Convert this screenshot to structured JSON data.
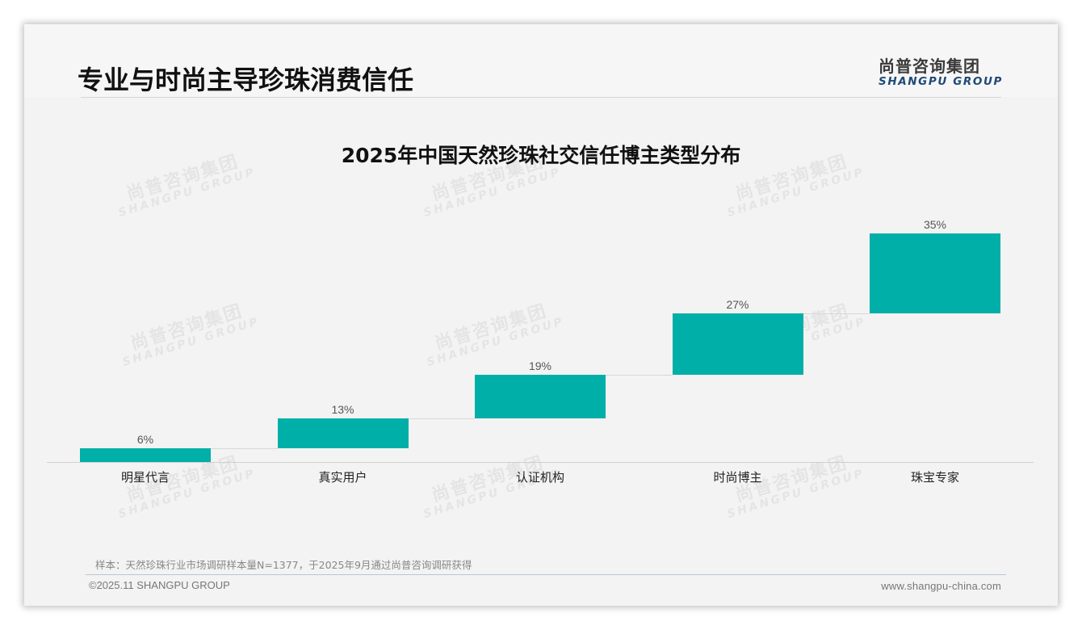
{
  "header": {
    "title": "专业与时尚主导珍珠消费信任",
    "logo_cn": "尚普咨询集团",
    "logo_en": "SHANGPU GROUP"
  },
  "watermark": {
    "cn": "尚普咨询集团",
    "en": "SHANGPU GROUP"
  },
  "chart_data": {
    "type": "bar",
    "subtype": "waterfall",
    "title": "2025年中国天然珍珠社交信任博主类型分布",
    "categories": [
      "明星代言",
      "真实用户",
      "认证机构",
      "时尚博主",
      "珠宝专家"
    ],
    "values": [
      6,
      13,
      19,
      27,
      35
    ],
    "value_labels": [
      "6%",
      "13%",
      "19%",
      "27%",
      "35%"
    ],
    "unit": "%",
    "xlabel": "",
    "ylabel": "",
    "ylim": [
      0,
      100
    ],
    "grid": false,
    "legend": "none",
    "bar_color": "#00afa8"
  },
  "footer": {
    "note": "样本：天然珍珠行业市场调研样本量N=1377，于2025年9月通过尚普咨询调研获得",
    "copyright": "©2025.11 SHANGPU GROUP",
    "website": "www.shangpu-china.com"
  }
}
